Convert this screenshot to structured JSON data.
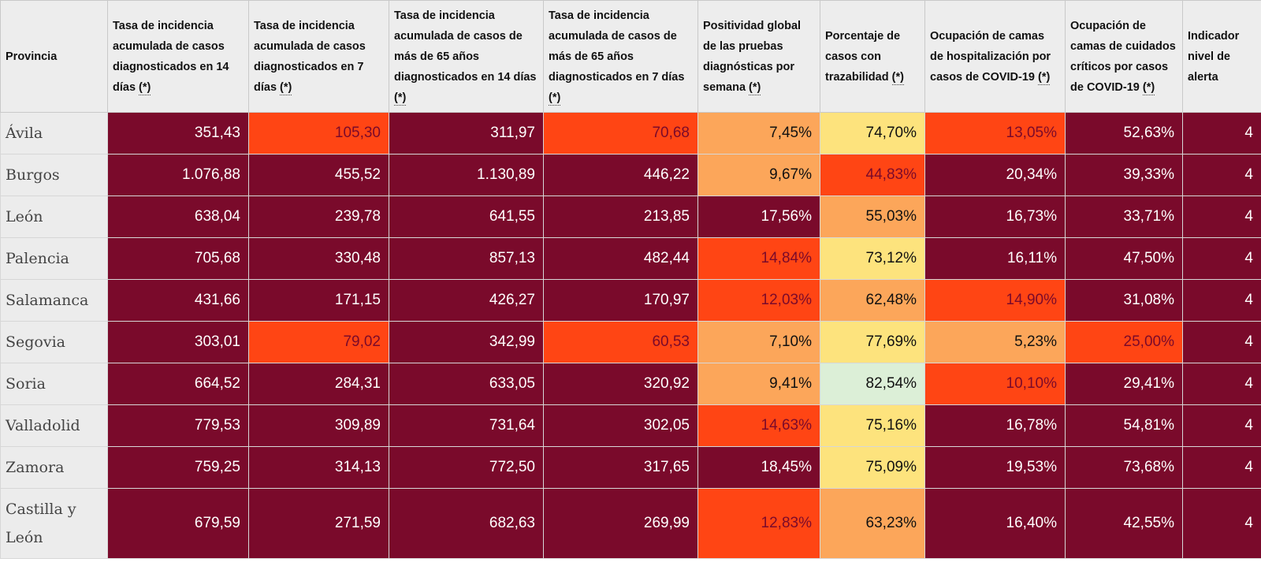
{
  "headers": {
    "provincia": "Provincia",
    "h1": "Tasa de incidencia acumulada de casos diagnosticados en 14 días",
    "h2": "Tasa de incidencia acumulada de casos diagnosticados en 7 días",
    "h3": "Tasa de incidencia acumulada de casos de más de 65 años diagnosticados en 14 días",
    "h4": "Tasa de incidencia acumulada de casos de más de 65 años diagnosticados en 7 días",
    "h5": "Positividad global de las pruebas diagnósticas por semana",
    "h6": "Porcentaje de casos con trazabilidad",
    "h7": "Ocupación de camas de hospitalización por casos de COVID-19",
    "h8": "Ocupación de camas de cuidados críticos por casos de COVID-19",
    "h9": "Indicador nivel de alerta",
    "asterisk": "(*)"
  },
  "level_colors": {
    "dark": "#7a0a2b",
    "red": "#ff4514",
    "orange": "#fca65a",
    "yellow": "#fde37d",
    "green": "#dcefd7"
  },
  "rows": [
    {
      "prov": "Ávila",
      "v": [
        "351,43",
        "105,30",
        "311,97",
        "70,68",
        "7,45%",
        "74,70%",
        "13,05%",
        "52,63%",
        "4"
      ],
      "c": [
        "dark",
        "red",
        "dark",
        "red",
        "org",
        "yel",
        "red",
        "dark",
        "dark"
      ]
    },
    {
      "prov": "Burgos",
      "v": [
        "1.076,88",
        "455,52",
        "1.130,89",
        "446,22",
        "9,67%",
        "44,83%",
        "20,34%",
        "39,33%",
        "4"
      ],
      "c": [
        "dark",
        "dark",
        "dark",
        "dark",
        "org",
        "red",
        "dark",
        "dark",
        "dark"
      ]
    },
    {
      "prov": "León",
      "v": [
        "638,04",
        "239,78",
        "641,55",
        "213,85",
        "17,56%",
        "55,03%",
        "16,73%",
        "33,71%",
        "4"
      ],
      "c": [
        "dark",
        "dark",
        "dark",
        "dark",
        "dark",
        "org",
        "dark",
        "dark",
        "dark"
      ]
    },
    {
      "prov": "Palencia",
      "v": [
        "705,68",
        "330,48",
        "857,13",
        "482,44",
        "14,84%",
        "73,12%",
        "16,11%",
        "47,50%",
        "4"
      ],
      "c": [
        "dark",
        "dark",
        "dark",
        "dark",
        "red",
        "yel",
        "dark",
        "dark",
        "dark"
      ]
    },
    {
      "prov": "Salamanca",
      "v": [
        "431,66",
        "171,15",
        "426,27",
        "170,97",
        "12,03%",
        "62,48%",
        "14,90%",
        "31,08%",
        "4"
      ],
      "c": [
        "dark",
        "dark",
        "dark",
        "dark",
        "red",
        "org",
        "red",
        "dark",
        "dark"
      ]
    },
    {
      "prov": "Segovia",
      "v": [
        "303,01",
        "79,02",
        "342,99",
        "60,53",
        "7,10%",
        "77,69%",
        "5,23%",
        "25,00%",
        "4"
      ],
      "c": [
        "dark",
        "red",
        "dark",
        "red",
        "org",
        "yel",
        "org",
        "red",
        "dark"
      ]
    },
    {
      "prov": "Soria",
      "v": [
        "664,52",
        "284,31",
        "633,05",
        "320,92",
        "9,41%",
        "82,54%",
        "10,10%",
        "29,41%",
        "4"
      ],
      "c": [
        "dark",
        "dark",
        "dark",
        "dark",
        "org",
        "grn",
        "red",
        "dark",
        "dark"
      ]
    },
    {
      "prov": "Valladolid",
      "v": [
        "779,53",
        "309,89",
        "731,64",
        "302,05",
        "14,63%",
        "75,16%",
        "16,78%",
        "54,81%",
        "4"
      ],
      "c": [
        "dark",
        "dark",
        "dark",
        "dark",
        "red",
        "yel",
        "dark",
        "dark",
        "dark"
      ]
    },
    {
      "prov": "Zamora",
      "v": [
        "759,25",
        "314,13",
        "772,50",
        "317,65",
        "18,45%",
        "75,09%",
        "19,53%",
        "73,68%",
        "4"
      ],
      "c": [
        "dark",
        "dark",
        "dark",
        "dark",
        "dark",
        "yel",
        "dark",
        "dark",
        "dark"
      ]
    },
    {
      "prov": "Castilla y León",
      "v": [
        "679,59",
        "271,59",
        "682,63",
        "269,99",
        "12,83%",
        "63,23%",
        "16,40%",
        "42,55%",
        "4"
      ],
      "c": [
        "dark",
        "dark",
        "dark",
        "dark",
        "red",
        "org",
        "dark",
        "dark",
        "dark"
      ]
    }
  ]
}
